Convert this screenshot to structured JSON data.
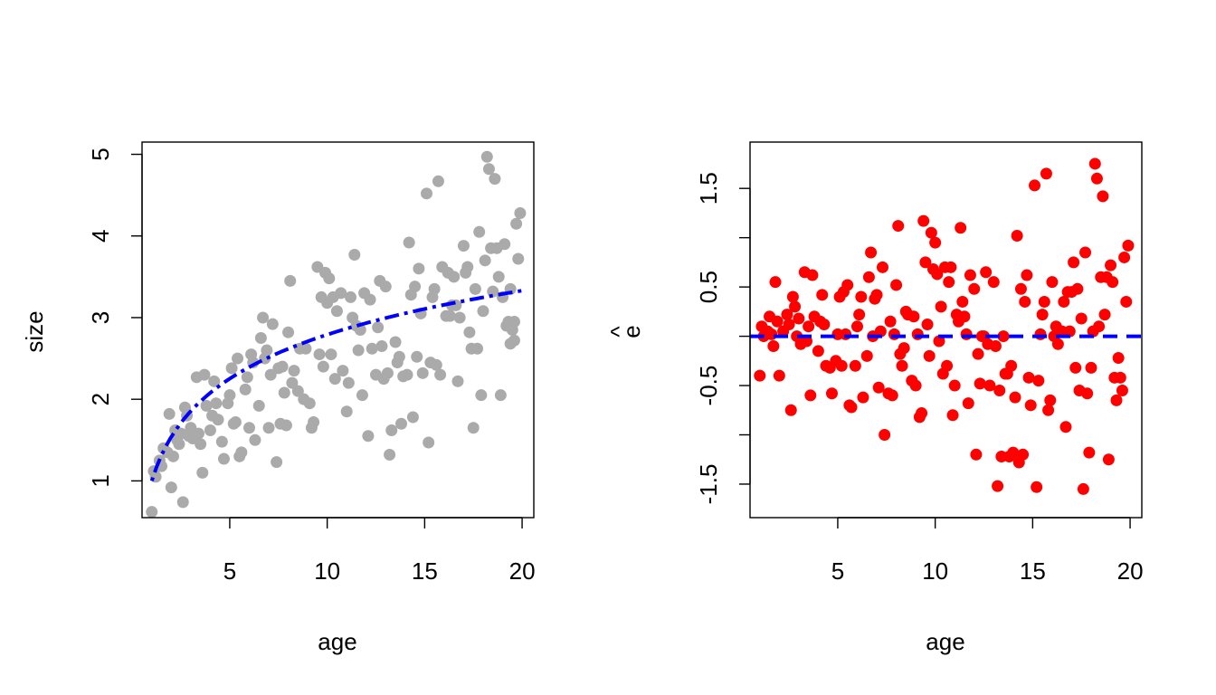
{
  "chart_data": [
    {
      "type": "scatter",
      "xlabel": "age",
      "ylabel": "size",
      "xlim": [
        0.5,
        20.6
      ],
      "ylim": [
        0.55,
        5.15
      ],
      "xticks": [
        5,
        10,
        15,
        20
      ],
      "xtick_labels": [
        "5",
        "10",
        "15",
        "20"
      ],
      "yticks": [
        1,
        2,
        3,
        4,
        5
      ],
      "ytick_labels": [
        "1",
        "2",
        "3",
        "4",
        "5"
      ],
      "point_color": "#aaaaaa",
      "line_color": "#0000ff",
      "line_style": "dotdash",
      "points": [
        [
          1.0,
          0.62
        ],
        [
          1.1,
          1.12
        ],
        [
          1.2,
          1.05
        ],
        [
          1.4,
          1.25
        ],
        [
          1.5,
          1.18
        ],
        [
          1.6,
          1.4
        ],
        [
          1.8,
          1.35
        ],
        [
          1.9,
          1.82
        ],
        [
          2.0,
          0.92
        ],
        [
          2.1,
          1.3
        ],
        [
          2.2,
          1.62
        ],
        [
          2.4,
          1.45
        ],
        [
          2.5,
          1.58
        ],
        [
          2.6,
          0.74
        ],
        [
          2.7,
          1.9
        ],
        [
          2.8,
          1.8
        ],
        [
          2.9,
          1.55
        ],
        [
          3.1,
          1.52
        ],
        [
          3.3,
          2.27
        ],
        [
          3.4,
          1.58
        ],
        [
          3.5,
          1.45
        ],
        [
          3.6,
          1.1
        ],
        [
          3.7,
          2.3
        ],
        [
          3.8,
          1.92
        ],
        [
          4.0,
          1.62
        ],
        [
          4.2,
          2.22
        ],
        [
          4.3,
          1.95
        ],
        [
          4.4,
          1.75
        ],
        [
          4.6,
          1.48
        ],
        [
          4.7,
          1.27
        ],
        [
          4.9,
          1.95
        ],
        [
          5.0,
          2.05
        ],
        [
          5.1,
          2.38
        ],
        [
          5.2,
          1.7
        ],
        [
          5.3,
          1.72
        ],
        [
          5.4,
          2.5
        ],
        [
          5.5,
          1.3
        ],
        [
          5.6,
          1.35
        ],
        [
          5.8,
          2.12
        ],
        [
          5.9,
          2.27
        ],
        [
          6.0,
          1.65
        ],
        [
          6.1,
          2.55
        ],
        [
          6.3,
          1.5
        ],
        [
          6.5,
          1.92
        ],
        [
          6.6,
          2.75
        ],
        [
          6.7,
          3.0
        ],
        [
          6.8,
          2.5
        ],
        [
          6.9,
          2.6
        ],
        [
          7.0,
          1.65
        ],
        [
          7.1,
          2.3
        ],
        [
          7.2,
          2.92
        ],
        [
          7.4,
          1.23
        ],
        [
          7.5,
          2.38
        ],
        [
          7.6,
          1.7
        ],
        [
          7.8,
          2.08
        ],
        [
          7.9,
          1.68
        ],
        [
          8.0,
          2.82
        ],
        [
          8.1,
          3.45
        ],
        [
          8.2,
          2.2
        ],
        [
          8.3,
          2.35
        ],
        [
          8.5,
          2.1
        ],
        [
          8.6,
          2.62
        ],
        [
          8.8,
          2.0
        ],
        [
          8.9,
          2.62
        ],
        [
          9.1,
          1.95
        ],
        [
          9.2,
          1.65
        ],
        [
          9.3,
          1.72
        ],
        [
          9.5,
          3.62
        ],
        [
          9.6,
          2.55
        ],
        [
          9.7,
          3.25
        ],
        [
          9.8,
          2.4
        ],
        [
          9.9,
          3.55
        ],
        [
          10.0,
          3.18
        ],
        [
          10.1,
          3.48
        ],
        [
          10.2,
          2.55
        ],
        [
          10.3,
          3.25
        ],
        [
          10.4,
          2.25
        ],
        [
          10.5,
          3.08
        ],
        [
          10.7,
          3.3
        ],
        [
          10.8,
          2.35
        ],
        [
          11.0,
          1.85
        ],
        [
          11.1,
          2.2
        ],
        [
          11.2,
          3.25
        ],
        [
          11.3,
          3.0
        ],
        [
          11.4,
          3.77
        ],
        [
          11.5,
          2.9
        ],
        [
          11.6,
          2.6
        ],
        [
          11.7,
          2.85
        ],
        [
          11.8,
          2.05
        ],
        [
          11.9,
          3.3
        ],
        [
          12.1,
          1.55
        ],
        [
          12.2,
          3.22
        ],
        [
          12.3,
          2.62
        ],
        [
          12.5,
          2.3
        ],
        [
          12.6,
          2.88
        ],
        [
          12.7,
          3.45
        ],
        [
          12.8,
          2.65
        ],
        [
          12.9,
          2.25
        ],
        [
          13.0,
          3.38
        ],
        [
          13.1,
          2.32
        ],
        [
          13.2,
          1.32
        ],
        [
          13.3,
          1.62
        ],
        [
          13.5,
          2.7
        ],
        [
          13.6,
          2.45
        ],
        [
          13.7,
          2.52
        ],
        [
          13.8,
          1.7
        ],
        [
          13.9,
          2.28
        ],
        [
          14.1,
          2.3
        ],
        [
          14.2,
          3.92
        ],
        [
          14.3,
          3.28
        ],
        [
          14.4,
          1.78
        ],
        [
          14.5,
          3.38
        ],
        [
          14.6,
          2.52
        ],
        [
          14.7,
          3.6
        ],
        [
          14.8,
          3.05
        ],
        [
          14.9,
          2.32
        ],
        [
          15.1,
          4.52
        ],
        [
          15.2,
          1.47
        ],
        [
          15.3,
          2.45
        ],
        [
          15.4,
          3.25
        ],
        [
          15.5,
          3.35
        ],
        [
          15.6,
          2.42
        ],
        [
          15.7,
          4.67
        ],
        [
          15.8,
          2.3
        ],
        [
          15.9,
          3.62
        ],
        [
          16.1,
          3.02
        ],
        [
          16.2,
          3.55
        ],
        [
          16.3,
          3.02
        ],
        [
          16.4,
          3.15
        ],
        [
          16.5,
          3.5
        ],
        [
          16.6,
          3.15
        ],
        [
          16.7,
          2.22
        ],
        [
          16.8,
          3.0
        ],
        [
          17.0,
          3.88
        ],
        [
          17.1,
          3.55
        ],
        [
          17.2,
          3.62
        ],
        [
          17.3,
          2.82
        ],
        [
          17.4,
          2.62
        ],
        [
          17.5,
          1.65
        ],
        [
          17.6,
          3.35
        ],
        [
          17.7,
          2.62
        ],
        [
          17.8,
          4.05
        ],
        [
          17.9,
          2.05
        ],
        [
          18.0,
          3.08
        ],
        [
          18.1,
          3.7
        ],
        [
          18.2,
          4.97
        ],
        [
          18.3,
          4.82
        ],
        [
          18.4,
          3.85
        ],
        [
          18.5,
          3.32
        ],
        [
          18.6,
          4.7
        ],
        [
          18.7,
          3.85
        ],
        [
          18.8,
          3.5
        ],
        [
          18.9,
          2.05
        ],
        [
          19.0,
          3.25
        ],
        [
          19.1,
          3.9
        ],
        [
          19.2,
          2.9
        ],
        [
          19.3,
          2.95
        ],
        [
          19.4,
          3.35
        ],
        [
          19.5,
          2.85
        ],
        [
          19.6,
          2.72
        ],
        [
          19.7,
          4.15
        ],
        [
          19.8,
          3.72
        ],
        [
          19.9,
          4.28
        ],
        [
          19.6,
          2.95
        ],
        [
          19.4,
          2.68
        ],
        [
          2.3,
          1.5
        ],
        [
          3.0,
          1.65
        ],
        [
          4.1,
          1.8
        ],
        [
          6.2,
          2.45
        ],
        [
          7.7,
          2.4
        ]
      ]
    },
    {
      "type": "scatter",
      "xlabel": "age",
      "ylabel": "e",
      "ylabel_hat": "^",
      "xlim": [
        0.5,
        20.6
      ],
      "ylim": [
        -1.84,
        1.97
      ],
      "xticks": [
        5,
        10,
        15,
        20
      ],
      "xtick_labels": [
        "5",
        "10",
        "15",
        "20"
      ],
      "yticks": [
        -1.5,
        -1,
        -0.5,
        0,
        0.5,
        1,
        1.5
      ],
      "ytick_labels": [
        "-1.5",
        "",
        "-0.5",
        "",
        "0.5",
        "",
        "1.5"
      ],
      "point_color": "#ff0000",
      "line_color": "#0000ff",
      "line_style": "dashed",
      "hline_y": 0,
      "points": [
        [
          1.0,
          -0.4
        ],
        [
          1.1,
          0.1
        ],
        [
          1.2,
          0.0
        ],
        [
          1.4,
          0.05
        ],
        [
          1.5,
          0.2
        ],
        [
          1.6,
          0.02
        ],
        [
          1.7,
          -0.1
        ],
        [
          1.8,
          0.55
        ],
        [
          1.9,
          0.15
        ],
        [
          2.0,
          -0.4
        ],
        [
          2.2,
          0.05
        ],
        [
          2.4,
          0.22
        ],
        [
          2.5,
          0.12
        ],
        [
          2.6,
          -0.75
        ],
        [
          2.7,
          0.4
        ],
        [
          2.8,
          0.3
        ],
        [
          2.9,
          0.0
        ],
        [
          3.0,
          0.18
        ],
        [
          3.1,
          -0.08
        ],
        [
          3.3,
          0.65
        ],
        [
          3.4,
          -0.05
        ],
        [
          3.5,
          0.1
        ],
        [
          3.6,
          -0.6
        ],
        [
          3.7,
          0.62
        ],
        [
          3.8,
          0.2
        ],
        [
          4.0,
          -0.15
        ],
        [
          4.1,
          0.15
        ],
        [
          4.2,
          0.42
        ],
        [
          4.3,
          0.12
        ],
        [
          4.4,
          -0.3
        ],
        [
          4.6,
          -0.32
        ],
        [
          4.7,
          -0.58
        ],
        [
          4.9,
          -0.25
        ],
        [
          5.0,
          0.02
        ],
        [
          5.1,
          0.4
        ],
        [
          5.2,
          -0.3
        ],
        [
          5.3,
          0.45
        ],
        [
          5.4,
          0.02
        ],
        [
          5.5,
          0.52
        ],
        [
          5.6,
          -0.7
        ],
        [
          5.7,
          -0.72
        ],
        [
          5.9,
          -0.3
        ],
        [
          6.0,
          0.1
        ],
        [
          6.1,
          0.22
        ],
        [
          6.2,
          0.4
        ],
        [
          6.3,
          -0.62
        ],
        [
          6.5,
          -0.2
        ],
        [
          6.6,
          0.6
        ],
        [
          6.7,
          0.85
        ],
        [
          6.8,
          0.0
        ],
        [
          6.9,
          0.38
        ],
        [
          7.0,
          0.42
        ],
        [
          7.1,
          -0.52
        ],
        [
          7.2,
          0.05
        ],
        [
          7.3,
          0.7
        ],
        [
          7.4,
          -1.0
        ],
        [
          7.6,
          -0.58
        ],
        [
          7.7,
          0.15
        ],
        [
          7.8,
          -0.6
        ],
        [
          7.9,
          0.02
        ],
        [
          8.0,
          0.52
        ],
        [
          8.1,
          1.12
        ],
        [
          8.2,
          -0.18
        ],
        [
          8.3,
          -0.3
        ],
        [
          8.4,
          -0.12
        ],
        [
          8.5,
          0.25
        ],
        [
          8.6,
          0.22
        ],
        [
          8.8,
          -0.45
        ],
        [
          8.9,
          0.2
        ],
        [
          9.0,
          -0.5
        ],
        [
          9.1,
          0.02
        ],
        [
          9.2,
          -0.82
        ],
        [
          9.3,
          -0.78
        ],
        [
          9.4,
          1.17
        ],
        [
          9.5,
          0.75
        ],
        [
          9.6,
          0.12
        ],
        [
          9.7,
          -0.2
        ],
        [
          9.8,
          1.05
        ],
        [
          9.9,
          0.68
        ],
        [
          10.0,
          0.95
        ],
        [
          10.1,
          0.63
        ],
        [
          10.2,
          -0.05
        ],
        [
          10.3,
          0.3
        ],
        [
          10.4,
          -0.38
        ],
        [
          10.5,
          0.7
        ],
        [
          10.6,
          -0.3
        ],
        [
          10.7,
          0.55
        ],
        [
          10.8,
          0.7
        ],
        [
          10.9,
          -0.8
        ],
        [
          11.0,
          -0.5
        ],
        [
          11.1,
          0.22
        ],
        [
          11.2,
          0.15
        ],
        [
          11.3,
          1.1
        ],
        [
          11.4,
          0.35
        ],
        [
          11.5,
          0.2
        ],
        [
          11.6,
          0.02
        ],
        [
          11.7,
          -0.68
        ],
        [
          11.8,
          0.62
        ],
        [
          12.0,
          0.48
        ],
        [
          12.1,
          -1.2
        ],
        [
          12.2,
          -0.18
        ],
        [
          12.3,
          -0.48
        ],
        [
          12.4,
          0.0
        ],
        [
          12.5,
          0.0
        ],
        [
          12.6,
          0.65
        ],
        [
          12.7,
          -0.08
        ],
        [
          12.8,
          -0.5
        ],
        [
          13.0,
          0.55
        ],
        [
          13.1,
          -0.1
        ],
        [
          13.2,
          -1.52
        ],
        [
          13.3,
          -0.55
        ],
        [
          13.4,
          -1.22
        ],
        [
          13.5,
          0.0
        ],
        [
          13.6,
          -0.38
        ],
        [
          13.7,
          -0.38
        ],
        [
          13.8,
          -1.22
        ],
        [
          13.9,
          -0.3
        ],
        [
          14.0,
          -1.18
        ],
        [
          14.1,
          -0.62
        ],
        [
          14.2,
          1.02
        ],
        [
          14.3,
          -1.28
        ],
        [
          14.4,
          0.48
        ],
        [
          14.5,
          -1.2
        ],
        [
          14.6,
          0.35
        ],
        [
          14.7,
          0.62
        ],
        [
          14.8,
          -0.42
        ],
        [
          14.9,
          -0.7
        ],
        [
          15.1,
          1.53
        ],
        [
          15.2,
          -1.53
        ],
        [
          15.3,
          -0.45
        ],
        [
          15.4,
          0.02
        ],
        [
          15.5,
          0.22
        ],
        [
          15.6,
          0.35
        ],
        [
          15.7,
          1.65
        ],
        [
          15.8,
          -0.75
        ],
        [
          15.9,
          -0.65
        ],
        [
          16.0,
          0.55
        ],
        [
          16.1,
          0.0
        ],
        [
          16.2,
          0.1
        ],
        [
          16.3,
          -0.08
        ],
        [
          16.4,
          0.05
        ],
        [
          16.5,
          0.05
        ],
        [
          16.6,
          0.35
        ],
        [
          16.7,
          -0.92
        ],
        [
          16.8,
          0.45
        ],
        [
          16.9,
          0.05
        ],
        [
          17.0,
          0.45
        ],
        [
          17.1,
          0.75
        ],
        [
          17.2,
          -0.32
        ],
        [
          17.3,
          0.48
        ],
        [
          17.4,
          -0.55
        ],
        [
          17.5,
          0.18
        ],
        [
          17.6,
          -1.55
        ],
        [
          17.7,
          0.85
        ],
        [
          17.8,
          -0.58
        ],
        [
          17.9,
          -1.18
        ],
        [
          18.0,
          -0.32
        ],
        [
          18.1,
          0.05
        ],
        [
          18.2,
          1.75
        ],
        [
          18.3,
          1.6
        ],
        [
          18.4,
          0.1
        ],
        [
          18.5,
          0.6
        ],
        [
          18.6,
          1.42
        ],
        [
          18.7,
          0.22
        ],
        [
          18.8,
          0.6
        ],
        [
          18.9,
          -1.25
        ],
        [
          19.0,
          0.72
        ],
        [
          19.1,
          0.55
        ],
        [
          19.2,
          -0.42
        ],
        [
          19.3,
          -0.65
        ],
        [
          19.4,
          -0.22
        ],
        [
          19.5,
          -0.42
        ],
        [
          19.6,
          -0.55
        ],
        [
          19.7,
          0.8
        ],
        [
          19.8,
          0.35
        ],
        [
          19.9,
          0.92
        ]
      ]
    }
  ]
}
